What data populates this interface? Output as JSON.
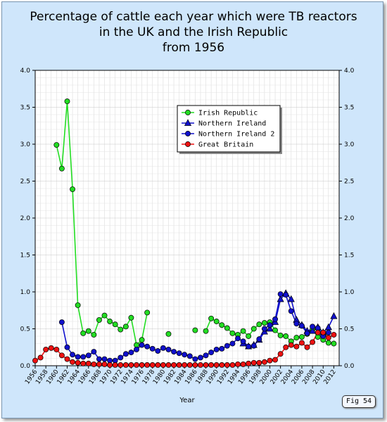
{
  "page": {
    "title_lines": [
      "Percentage of cattle each year which were TB reactors",
      "in the UK and the Irish Republic",
      "from 1956"
    ],
    "fig_label": "Fig 54"
  },
  "chart_data": {
    "type": "line",
    "title": "Percentage of cattle each year which were TB reactors in the UK and the Irish Republic from 1956",
    "xlabel": "Year",
    "ylabel": "",
    "xlim": [
      1956,
      2013
    ],
    "ylim": [
      0,
      4.0
    ],
    "yticks": [
      "0.0",
      "0.5",
      "1.0",
      "1.5",
      "2.0",
      "2.5",
      "3.0",
      "3.5",
      "4.0"
    ],
    "xticks": [
      1956,
      1958,
      1960,
      1962,
      1964,
      1966,
      1968,
      1970,
      1972,
      1974,
      1976,
      1978,
      1980,
      1982,
      1984,
      1986,
      1988,
      1990,
      1992,
      1994,
      1996,
      1998,
      2000,
      2002,
      2004,
      2006,
      2008,
      2010,
      2012
    ],
    "grid": true,
    "legend_position": "top-right",
    "series": [
      {
        "name": "Irish Republic",
        "color": "#22dd22",
        "marker": "circle",
        "points": [
          [
            1960,
            2.99
          ],
          [
            1961,
            2.67
          ],
          [
            1962,
            3.58
          ],
          [
            1963,
            2.39
          ],
          [
            1964,
            0.82
          ],
          [
            1965,
            0.44
          ],
          [
            1966,
            0.47
          ],
          [
            1967,
            0.42
          ],
          [
            1968,
            0.62
          ],
          [
            1969,
            0.68
          ],
          [
            1970,
            0.6
          ],
          [
            1971,
            0.56
          ],
          [
            1972,
            0.49
          ],
          [
            1973,
            0.53
          ],
          [
            1974,
            0.65
          ],
          [
            1975,
            0.28
          ],
          [
            1976,
            0.35
          ],
          [
            1977,
            0.72
          ],
          null,
          [
            1981,
            0.43
          ],
          null,
          [
            1986,
            0.48
          ],
          null,
          [
            1988,
            0.47
          ],
          [
            1989,
            0.64
          ],
          [
            1990,
            0.6
          ],
          [
            1991,
            0.55
          ],
          [
            1992,
            0.51
          ],
          [
            1993,
            0.44
          ],
          [
            1994,
            0.42
          ],
          [
            1995,
            0.47
          ],
          [
            1996,
            0.4
          ],
          [
            1997,
            0.5
          ],
          [
            1998,
            0.56
          ],
          [
            1999,
            0.58
          ],
          [
            2000,
            0.59
          ],
          [
            2001,
            0.48
          ],
          [
            2002,
            0.41
          ],
          [
            2003,
            0.4
          ],
          [
            2004,
            0.33
          ],
          [
            2005,
            0.38
          ],
          [
            2006,
            0.39
          ],
          [
            2007,
            0.43
          ],
          [
            2008,
            0.49
          ],
          [
            2009,
            0.39
          ],
          [
            2010,
            0.35
          ],
          [
            2011,
            0.31
          ],
          [
            2012,
            0.3
          ]
        ]
      },
      {
        "name": "Northern Ireland",
        "color": "#1010cc",
        "marker": "triangle",
        "points": [
          [
            1995,
            0.3
          ],
          [
            1996,
            0.26
          ],
          [
            1997,
            0.28
          ],
          [
            1998,
            0.35
          ],
          [
            1999,
            0.46
          ],
          [
            2000,
            0.5
          ],
          [
            2001,
            0.59
          ],
          [
            2002,
            0.9
          ],
          [
            2003,
            0.98
          ],
          [
            2004,
            0.9
          ],
          [
            2005,
            0.62
          ],
          [
            2006,
            0.55
          ],
          [
            2007,
            0.47
          ],
          [
            2008,
            0.47
          ],
          [
            2009,
            0.52
          ],
          [
            2010,
            0.45
          ],
          [
            2011,
            0.52
          ],
          [
            2012,
            0.67
          ]
        ]
      },
      {
        "name": "Northern Ireland 2",
        "color": "#1010cc",
        "marker": "circle",
        "points": [
          [
            1961,
            0.59
          ],
          [
            1962,
            0.25
          ],
          [
            1963,
            0.15
          ],
          [
            1964,
            0.12
          ],
          [
            1965,
            0.12
          ],
          [
            1966,
            0.14
          ],
          [
            1967,
            0.19
          ],
          [
            1968,
            0.09
          ],
          [
            1969,
            0.09
          ],
          [
            1970,
            0.07
          ],
          [
            1971,
            0.07
          ],
          [
            1972,
            0.11
          ],
          [
            1973,
            0.16
          ],
          [
            1974,
            0.18
          ],
          [
            1975,
            0.22
          ],
          [
            1976,
            0.28
          ],
          [
            1977,
            0.26
          ],
          [
            1978,
            0.23
          ],
          [
            1979,
            0.2
          ],
          [
            1980,
            0.24
          ],
          [
            1981,
            0.22
          ],
          [
            1982,
            0.19
          ],
          [
            1983,
            0.17
          ],
          [
            1984,
            0.15
          ],
          [
            1985,
            0.13
          ],
          [
            1986,
            0.09
          ],
          [
            1987,
            0.11
          ],
          [
            1988,
            0.14
          ],
          [
            1989,
            0.18
          ],
          [
            1990,
            0.22
          ],
          [
            1991,
            0.23
          ],
          [
            1992,
            0.27
          ],
          [
            1993,
            0.3
          ],
          [
            1994,
            0.37
          ],
          [
            1995,
            0.33
          ],
          [
            1996,
            0.26
          ],
          [
            1997,
            0.27
          ],
          [
            1998,
            0.36
          ],
          [
            1999,
            0.5
          ],
          [
            2000,
            0.55
          ],
          [
            2001,
            0.63
          ],
          [
            2002,
            0.97
          ],
          [
            2003,
            0.96
          ],
          [
            2004,
            0.74
          ],
          [
            2005,
            0.57
          ],
          [
            2006,
            0.54
          ],
          [
            2007,
            0.44
          ],
          [
            2008,
            0.53
          ],
          [
            2009,
            0.51
          ],
          [
            2010,
            0.4
          ],
          [
            2011,
            0.45
          ]
        ]
      },
      {
        "name": "Great Britain",
        "color": "#ee1111",
        "marker": "circle",
        "points": [
          [
            1956,
            0.07
          ],
          [
            1957,
            0.11
          ],
          [
            1958,
            0.22
          ],
          [
            1959,
            0.24
          ],
          [
            1960,
            0.22
          ],
          [
            1961,
            0.14
          ],
          [
            1962,
            0.09
          ],
          [
            1963,
            0.05
          ],
          [
            1964,
            0.04
          ],
          [
            1965,
            0.03
          ],
          [
            1966,
            0.03
          ],
          [
            1967,
            0.02
          ],
          [
            1968,
            0.02
          ],
          [
            1969,
            0.02
          ],
          [
            1970,
            0.01
          ],
          [
            1971,
            0.01
          ],
          [
            1972,
            0.01
          ],
          [
            1973,
            0.01
          ],
          [
            1974,
            0.01
          ],
          [
            1975,
            0.01
          ],
          [
            1976,
            0.01
          ],
          [
            1977,
            0.01
          ],
          [
            1978,
            0.01
          ],
          [
            1979,
            0.01
          ],
          [
            1980,
            0.01
          ],
          [
            1981,
            0.01
          ],
          [
            1982,
            0.01
          ],
          [
            1983,
            0.01
          ],
          [
            1984,
            0.01
          ],
          [
            1985,
            0.01
          ],
          [
            1986,
            0.01
          ],
          [
            1987,
            0.01
          ],
          [
            1988,
            0.01
          ],
          [
            1989,
            0.01
          ],
          [
            1990,
            0.01
          ],
          [
            1991,
            0.01
          ],
          [
            1992,
            0.01
          ],
          [
            1993,
            0.01
          ],
          [
            1994,
            0.02
          ],
          [
            1995,
            0.02
          ],
          [
            1996,
            0.03
          ],
          [
            1997,
            0.04
          ],
          [
            1998,
            0.04
          ],
          [
            1999,
            0.05
          ],
          [
            2000,
            0.07
          ],
          [
            2001,
            0.08
          ],
          [
            2002,
            0.16
          ],
          [
            2003,
            0.25
          ],
          [
            2004,
            0.28
          ],
          [
            2005,
            0.26
          ],
          [
            2006,
            0.31
          ],
          [
            2007,
            0.25
          ],
          [
            2008,
            0.32
          ],
          [
            2009,
            0.45
          ],
          [
            2010,
            0.45
          ],
          [
            2011,
            0.38
          ],
          [
            2012,
            0.42
          ]
        ]
      }
    ]
  }
}
